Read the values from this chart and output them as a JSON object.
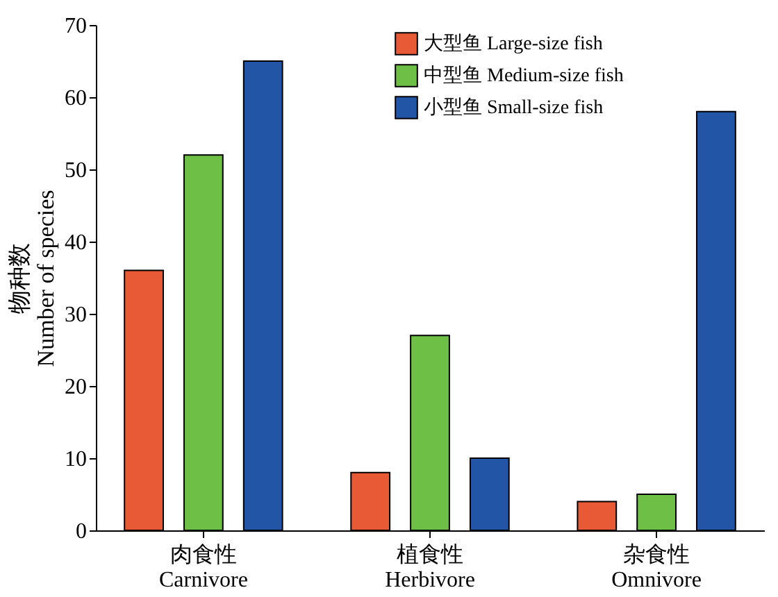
{
  "chart_data": {
    "type": "bar",
    "categories": [
      "肉食性\nCarnivore",
      "植食性\nHerbivore",
      "杂食性\nOmnivore"
    ],
    "series": [
      {
        "name": "大型鱼 Large-size fish",
        "color": "#e85a36",
        "values": [
          36,
          8,
          4
        ]
      },
      {
        "name": "中型鱼 Medium-size fish",
        "color": "#6dbf45",
        "values": [
          52,
          27,
          5
        ]
      },
      {
        "name": "小型鱼 Small-size fish",
        "color": "#2255a6",
        "values": [
          65,
          10,
          58
        ]
      }
    ],
    "ylabel": "物种数\nNumber of species",
    "ylim": [
      0,
      70
    ],
    "yticks": [
      0,
      10,
      20,
      30,
      40,
      50,
      60,
      70
    ],
    "grid": false,
    "legend": "top right"
  }
}
